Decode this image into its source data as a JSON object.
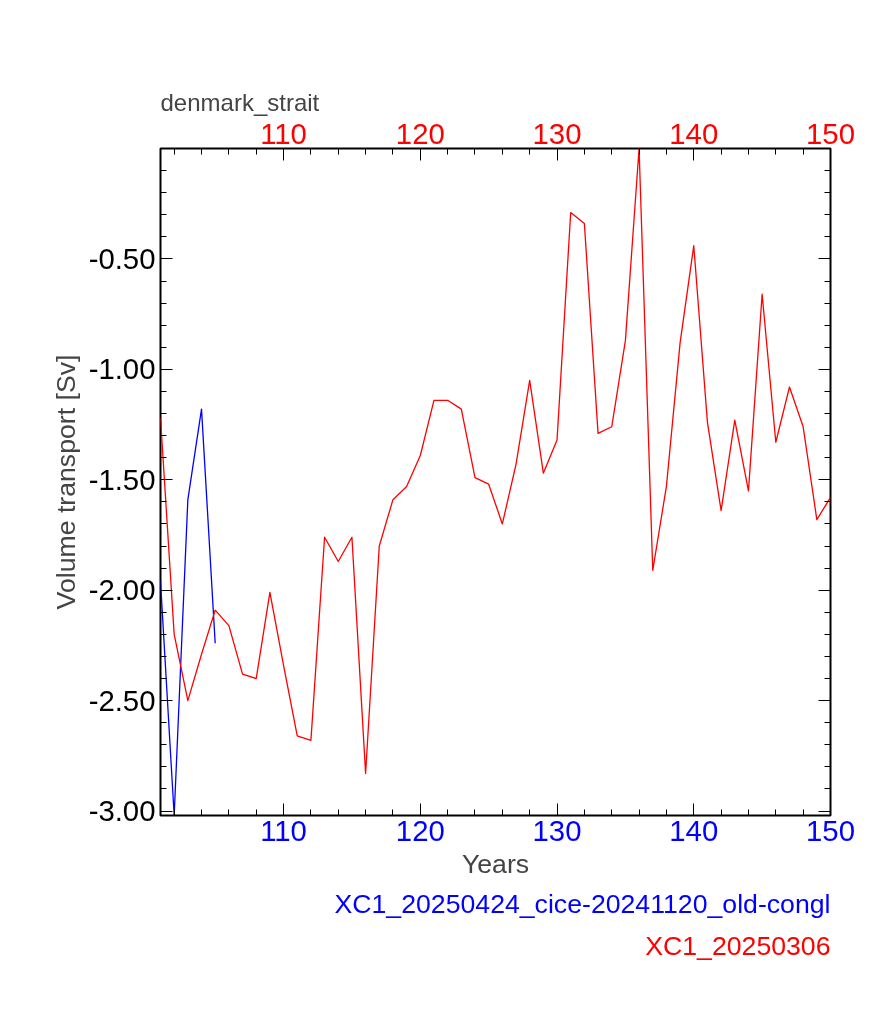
{
  "chart_data": {
    "type": "line",
    "title": "denmark_strait",
    "xlabel": "Years",
    "ylabel": "Volume transport [Sv]",
    "xlim": [
      101,
      150
    ],
    "xticks": [
      {
        "value": 102,
        "label": null
      },
      {
        "value": 104,
        "label": null
      },
      {
        "value": 106,
        "label": null
      },
      {
        "value": 108,
        "label": null
      },
      110,
      {
        "value": 112,
        "label": null
      },
      {
        "value": 114,
        "label": null
      },
      {
        "value": 116,
        "label": null
      },
      {
        "value": 118,
        "label": null
      },
      120,
      {
        "value": 122,
        "label": null
      },
      {
        "value": 124,
        "label": null
      },
      {
        "value": 126,
        "label": null
      },
      {
        "value": 128,
        "label": null
      },
      130,
      {
        "value": 132,
        "label": null
      },
      {
        "value": 134,
        "label": null
      },
      {
        "value": 136,
        "label": null
      },
      {
        "value": 138,
        "label": null
      },
      140,
      {
        "value": 142,
        "label": null
      },
      {
        "value": 144,
        "label": null
      },
      {
        "value": 146,
        "label": null
      },
      {
        "value": 148,
        "label": null
      },
      150
    ],
    "x2lim": [
      101,
      150
    ],
    "x2ticks": [
      {
        "value": 102,
        "label": null
      },
      {
        "value": 104,
        "label": null
      },
      {
        "value": 106,
        "label": null
      },
      {
        "value": 108,
        "label": null
      },
      110,
      {
        "value": 112,
        "label": null
      },
      {
        "value": 114,
        "label": null
      },
      {
        "value": 116,
        "label": null
      },
      {
        "value": 118,
        "label": null
      },
      120,
      {
        "value": 122,
        "label": null
      },
      {
        "value": 124,
        "label": null
      },
      {
        "value": 126,
        "label": null
      },
      {
        "value": 128,
        "label": null
      },
      130,
      {
        "value": 132,
        "label": null
      },
      {
        "value": 134,
        "label": null
      },
      {
        "value": 136,
        "label": null
      },
      {
        "value": 138,
        "label": null
      },
      140,
      {
        "value": 142,
        "label": null
      },
      {
        "value": 144,
        "label": null
      },
      {
        "value": 146,
        "label": null
      },
      {
        "value": 148,
        "label": null
      },
      150
    ],
    "ylim": [
      -3.02,
      0.0
    ],
    "yticks": [
      {
        "value": -3.0,
        "label": "-3.00"
      },
      {
        "value": -2.9,
        "label": null
      },
      {
        "value": -2.8,
        "label": null
      },
      {
        "value": -2.7,
        "label": null
      },
      {
        "value": -2.6,
        "label": null
      },
      {
        "value": -2.5,
        "label": "-2.50"
      },
      {
        "value": -2.4,
        "label": null
      },
      {
        "value": -2.3,
        "label": null
      },
      {
        "value": -2.2,
        "label": null
      },
      {
        "value": -2.1,
        "label": null
      },
      {
        "value": -2.0,
        "label": "-2.00"
      },
      {
        "value": -1.9,
        "label": null
      },
      {
        "value": -1.8,
        "label": null
      },
      {
        "value": -1.7,
        "label": null
      },
      {
        "value": -1.6,
        "label": null
      },
      {
        "value": -1.5,
        "label": "-1.50"
      },
      {
        "value": -1.4,
        "label": null
      },
      {
        "value": -1.3,
        "label": null
      },
      {
        "value": -1.2,
        "label": null
      },
      {
        "value": -1.1,
        "label": null
      },
      {
        "value": -1.0,
        "label": "-1.00"
      },
      {
        "value": -0.9,
        "label": null
      },
      {
        "value": -0.8,
        "label": null
      },
      {
        "value": -0.7,
        "label": null
      },
      {
        "value": -0.6,
        "label": null
      },
      {
        "value": -0.5,
        "label": "-0.50"
      },
      {
        "value": -0.4,
        "label": null
      },
      {
        "value": -0.3,
        "label": null
      },
      {
        "value": -0.2,
        "label": null
      },
      {
        "value": -0.1,
        "label": null
      }
    ],
    "grid": false,
    "legend": "bottom",
    "marker": "none",
    "line_style": "solid",
    "series": [
      {
        "name": "XC1_20250424_cice-20241120_old-congl",
        "color": "#0000ff",
        "x": [
          101,
          102,
          103,
          104,
          105
        ],
        "values": [
          -1.96,
          -3.02,
          -1.59,
          -1.18,
          -2.24
        ]
      },
      {
        "name": "XC1_20250306",
        "color": "#ff0000",
        "axis": "x2",
        "x": [
          101,
          102,
          103,
          104,
          105,
          106,
          107,
          108,
          109,
          110,
          111,
          112,
          113,
          114,
          115,
          116,
          117,
          118,
          119,
          120,
          121,
          122,
          123,
          124,
          125,
          126,
          127,
          128,
          129,
          130,
          131,
          132,
          133,
          134,
          135,
          136,
          137,
          138,
          139,
          140,
          141,
          142,
          143,
          144,
          145,
          146,
          147,
          148,
          149,
          150
        ],
        "values": [
          -1.22,
          -2.2,
          -2.5,
          -2.29,
          -2.09,
          -2.16,
          -2.38,
          -2.4,
          -2.01,
          -2.34,
          -2.66,
          -2.68,
          -1.76,
          -1.87,
          -1.76,
          -2.83,
          -1.8,
          -1.59,
          -1.53,
          -1.39,
          -1.14,
          -1.14,
          -1.18,
          -1.49,
          -1.52,
          -1.7,
          -1.43,
          -1.05,
          -1.47,
          -1.32,
          -0.29,
          -0.34,
          -1.29,
          -1.26,
          -0.87,
          0.0,
          -1.91,
          -1.53,
          -0.88,
          -0.44,
          -1.24,
          -1.64,
          -1.23,
          -1.55,
          -0.66,
          -1.33,
          -1.08,
          -1.26,
          -1.68,
          -1.58
        ]
      }
    ]
  }
}
